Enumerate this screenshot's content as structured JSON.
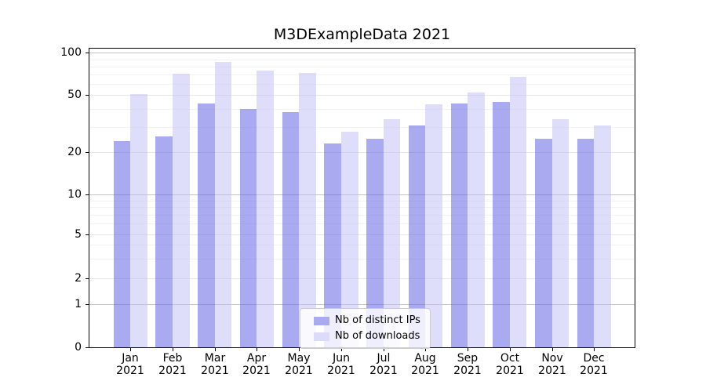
{
  "chart_data": {
    "type": "bar",
    "title": "M3DExampleData 2021",
    "categories": [
      {
        "month": "Jan",
        "year": "2021"
      },
      {
        "month": "Feb",
        "year": "2021"
      },
      {
        "month": "Mar",
        "year": "2021"
      },
      {
        "month": "Apr",
        "year": "2021"
      },
      {
        "month": "May",
        "year": "2021"
      },
      {
        "month": "Jun",
        "year": "2021"
      },
      {
        "month": "Jul",
        "year": "2021"
      },
      {
        "month": "Aug",
        "year": "2021"
      },
      {
        "month": "Sep",
        "year": "2021"
      },
      {
        "month": "Oct",
        "year": "2021"
      },
      {
        "month": "Nov",
        "year": "2021"
      },
      {
        "month": "Dec",
        "year": "2021"
      }
    ],
    "series": [
      {
        "name": "Nb of distinct IPs",
        "color": "#aaaaf1",
        "fill": "rgba(100,100,230,0.55)",
        "values": [
          24,
          26,
          44,
          40,
          38,
          23,
          25,
          31,
          44,
          45,
          25,
          25
        ]
      },
      {
        "name": "Nb of downloads",
        "color": "#dcdcfa",
        "fill": "rgba(190,190,245,0.5)",
        "values": [
          51,
          71,
          86,
          75,
          72,
          28,
          34,
          43,
          52,
          68,
          34,
          31
        ]
      }
    ],
    "y_axis": {
      "scale": "symlog",
      "ylim": [
        0,
        107
      ],
      "ticks": [
        0,
        1,
        2,
        5,
        10,
        20,
        50,
        100
      ],
      "minor_ticks": [
        3,
        4,
        6,
        7,
        8,
        9,
        30,
        40,
        60,
        70,
        80,
        90
      ],
      "anchors": [
        [
          0,
          0
        ],
        [
          1,
          0.1451
        ],
        [
          2,
          0.2314
        ],
        [
          5,
          0.3791
        ],
        [
          10,
          0.5111
        ],
        [
          20,
          0.6523
        ],
        [
          50,
          0.8442
        ],
        [
          100,
          0.9856
        ],
        [
          107,
          1.0
        ]
      ]
    },
    "legend": {
      "position": "lower center"
    },
    "grid": true
  },
  "colors": {
    "background": "#ffffff",
    "spine": "#000000",
    "grid_decade": "#c3c3c3",
    "grid_major": "#e6e6e6",
    "grid_minor": "#f2f2f2",
    "legend_border": "#cccccc"
  }
}
